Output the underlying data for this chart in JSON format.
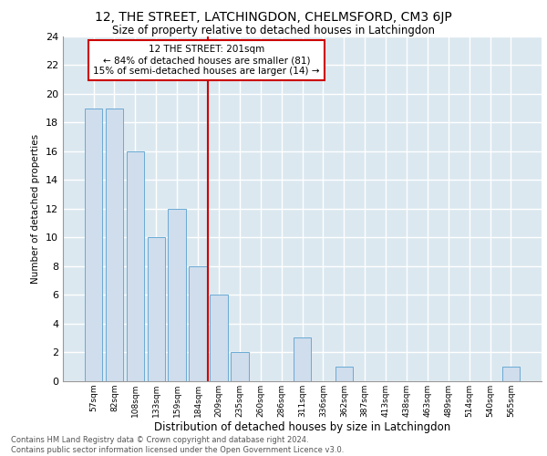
{
  "title1": "12, THE STREET, LATCHINGDON, CHELMSFORD, CM3 6JP",
  "title2": "Size of property relative to detached houses in Latchingdon",
  "xlabel": "Distribution of detached houses by size in Latchingdon",
  "ylabel": "Number of detached properties",
  "categories": [
    "57sqm",
    "82sqm",
    "108sqm",
    "133sqm",
    "159sqm",
    "184sqm",
    "209sqm",
    "235sqm",
    "260sqm",
    "286sqm",
    "311sqm",
    "336sqm",
    "362sqm",
    "387sqm",
    "413sqm",
    "438sqm",
    "463sqm",
    "489sqm",
    "514sqm",
    "540sqm",
    "565sqm"
  ],
  "values": [
    19,
    19,
    16,
    10,
    12,
    8,
    6,
    2,
    0,
    0,
    3,
    0,
    1,
    0,
    0,
    0,
    0,
    0,
    0,
    0,
    1
  ],
  "bar_color": "#cfdded",
  "bar_edge_color": "#6aaad4",
  "annotation_line_index": 6,
  "annotation_text_line1": "12 THE STREET: 201sqm",
  "annotation_text_line2": "← 84% of detached houses are smaller (81)",
  "annotation_text_line3": "15% of semi-detached houses are larger (14) →",
  "vline_color": "#cc0000",
  "annotation_box_color": "#cc0000",
  "background_color": "#dce8f0",
  "ylim": [
    0,
    24
  ],
  "yticks": [
    0,
    2,
    4,
    6,
    8,
    10,
    12,
    14,
    16,
    18,
    20,
    22,
    24
  ],
  "footer1": "Contains HM Land Registry data © Crown copyright and database right 2024.",
  "footer2": "Contains public sector information licensed under the Open Government Licence v3.0."
}
